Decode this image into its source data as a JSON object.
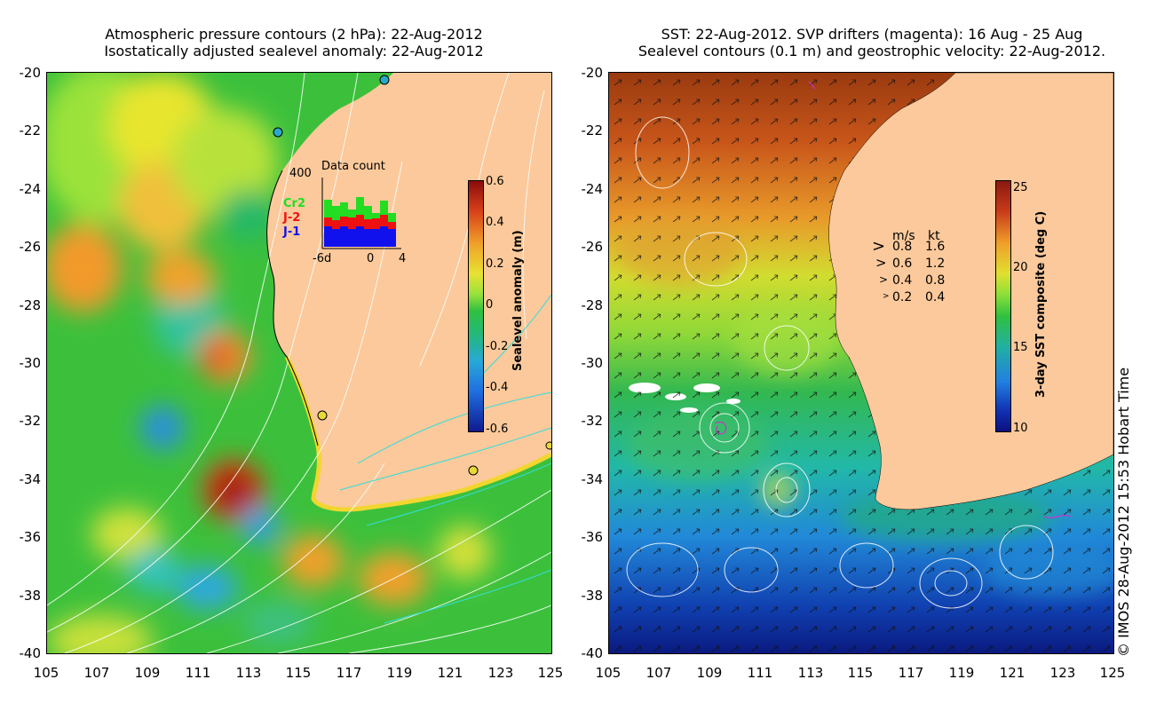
{
  "left_panel": {
    "title_line1": "Atmospheric pressure contours (2 hPa): 22-Aug-2012",
    "title_line2": "Isostatically adjusted sealevel anomaly: 22-Aug-2012",
    "colorbar": {
      "label": "Sealevel anomaly (m)",
      "ticks": [
        "0.6",
        "0.4",
        "0.2",
        "0",
        "-0.2",
        "-0.4",
        "-0.6"
      ]
    },
    "inset": {
      "title": "Data count",
      "ymax": "400",
      "x_start": "-6d",
      "x_mid": "0",
      "x_end": "4",
      "legend": [
        {
          "label": "Cr2",
          "color": "#22dd22"
        },
        {
          "label": "J-2",
          "color": "#ee1111"
        },
        {
          "label": "J-1",
          "color": "#1111ee"
        }
      ]
    }
  },
  "right_panel": {
    "title_line1": "SST: 22-Aug-2012. SVP drifters (magenta): 16 Aug - 25 Aug",
    "title_line2": "Sealevel contours (0.1 m) and geostrophic velocity: 22-Aug-2012.",
    "colorbar": {
      "label": "3-day SST composite (deg C)",
      "ticks": [
        "25",
        "20",
        "15",
        "10"
      ]
    },
    "velocity_legend": {
      "header_ms": "m/s",
      "header_kt": "kt",
      "rows": [
        {
          "ms": "0.8",
          "kt": "1.6"
        },
        {
          "ms": "0.6",
          "kt": "1.2"
        },
        {
          "ms": "0.4",
          "kt": "0.8"
        },
        {
          "ms": "0.2",
          "kt": "0.4"
        }
      ]
    }
  },
  "axes": {
    "lat_ticks": [
      "-20",
      "-22",
      "-24",
      "-26",
      "-28",
      "-30",
      "-32",
      "-34",
      "-36",
      "-38",
      "-40"
    ],
    "lon_ticks": [
      "105",
      "107",
      "109",
      "111",
      "113",
      "115",
      "117",
      "119",
      "121",
      "123",
      "125"
    ]
  },
  "credit": "© IMOS 28-Aug-2012 15:53 Hobart Time",
  "colors": {
    "land": "#fbc99b",
    "ocean_green": "#2fbf3f",
    "contour_white": "#ffffff",
    "contour_cyan": "#33dddd"
  }
}
